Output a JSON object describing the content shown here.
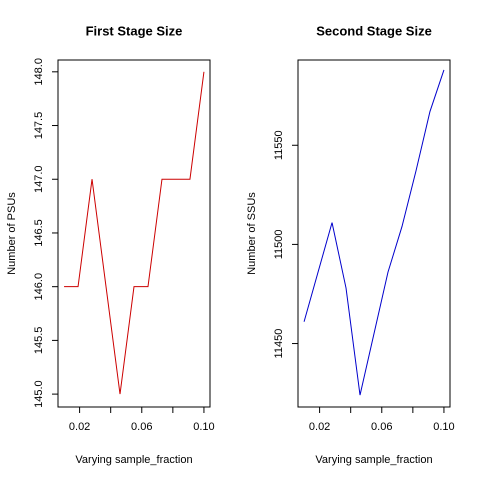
{
  "chart_data": [
    {
      "type": "line",
      "title": "First Stage Size",
      "xlabel": "Varying sample_fraction",
      "ylabel": "Number of PSUs",
      "x": [
        0.01,
        0.019,
        0.028,
        0.037,
        0.046,
        0.055,
        0.064,
        0.073,
        0.082,
        0.091,
        0.1
      ],
      "series": [
        {
          "name": "PSUs",
          "color": "#cc0000",
          "values": [
            146,
            146,
            147,
            146,
            145,
            146,
            146,
            147,
            147,
            147,
            148
          ]
        }
      ],
      "xlim": [
        0.0061,
        0.1039
      ],
      "ylim": [
        144.88,
        148.11
      ],
      "xticks": [
        {
          "value": 0.02,
          "label": "0.02"
        },
        {
          "value": 0.06,
          "label": "0.06"
        },
        {
          "value": 0.1,
          "label": "0.10"
        }
      ],
      "xminor": [
        0.04,
        0.08
      ],
      "yticks": [
        {
          "value": 145,
          "label": "145.0"
        },
        145.5,
        {
          "value": 146,
          "label": "146.0"
        },
        146.5,
        {
          "value": 147,
          "label": "147.0"
        },
        147.5,
        {
          "value": 148,
          "label": "148.0"
        }
      ]
    },
    {
      "type": "line",
      "title": "Second Stage Size",
      "xlabel": "Varying sample_fraction",
      "ylabel": "Number of SSUs",
      "x": [
        0.01,
        0.019,
        0.028,
        0.037,
        0.046,
        0.055,
        0.064,
        0.073,
        0.082,
        0.091,
        0.1
      ],
      "series": [
        {
          "name": "SSUs",
          "color": "#0000cc",
          "values": [
            11461,
            11486,
            11511,
            11478,
            11424,
            11455,
            11486,
            11509,
            11537,
            11567,
            11588
          ]
        }
      ],
      "xlim": [
        0.0061,
        0.1039
      ],
      "ylim": [
        11418,
        11593
      ],
      "xticks": [
        {
          "value": 0.02,
          "label": "0.02"
        },
        {
          "value": 0.06,
          "label": "0.06"
        },
        {
          "value": 0.1,
          "label": "0.10"
        }
      ],
      "xminor": [
        0.04,
        0.08
      ],
      "yticks": [
        11450,
        11500,
        11550
      ]
    }
  ]
}
